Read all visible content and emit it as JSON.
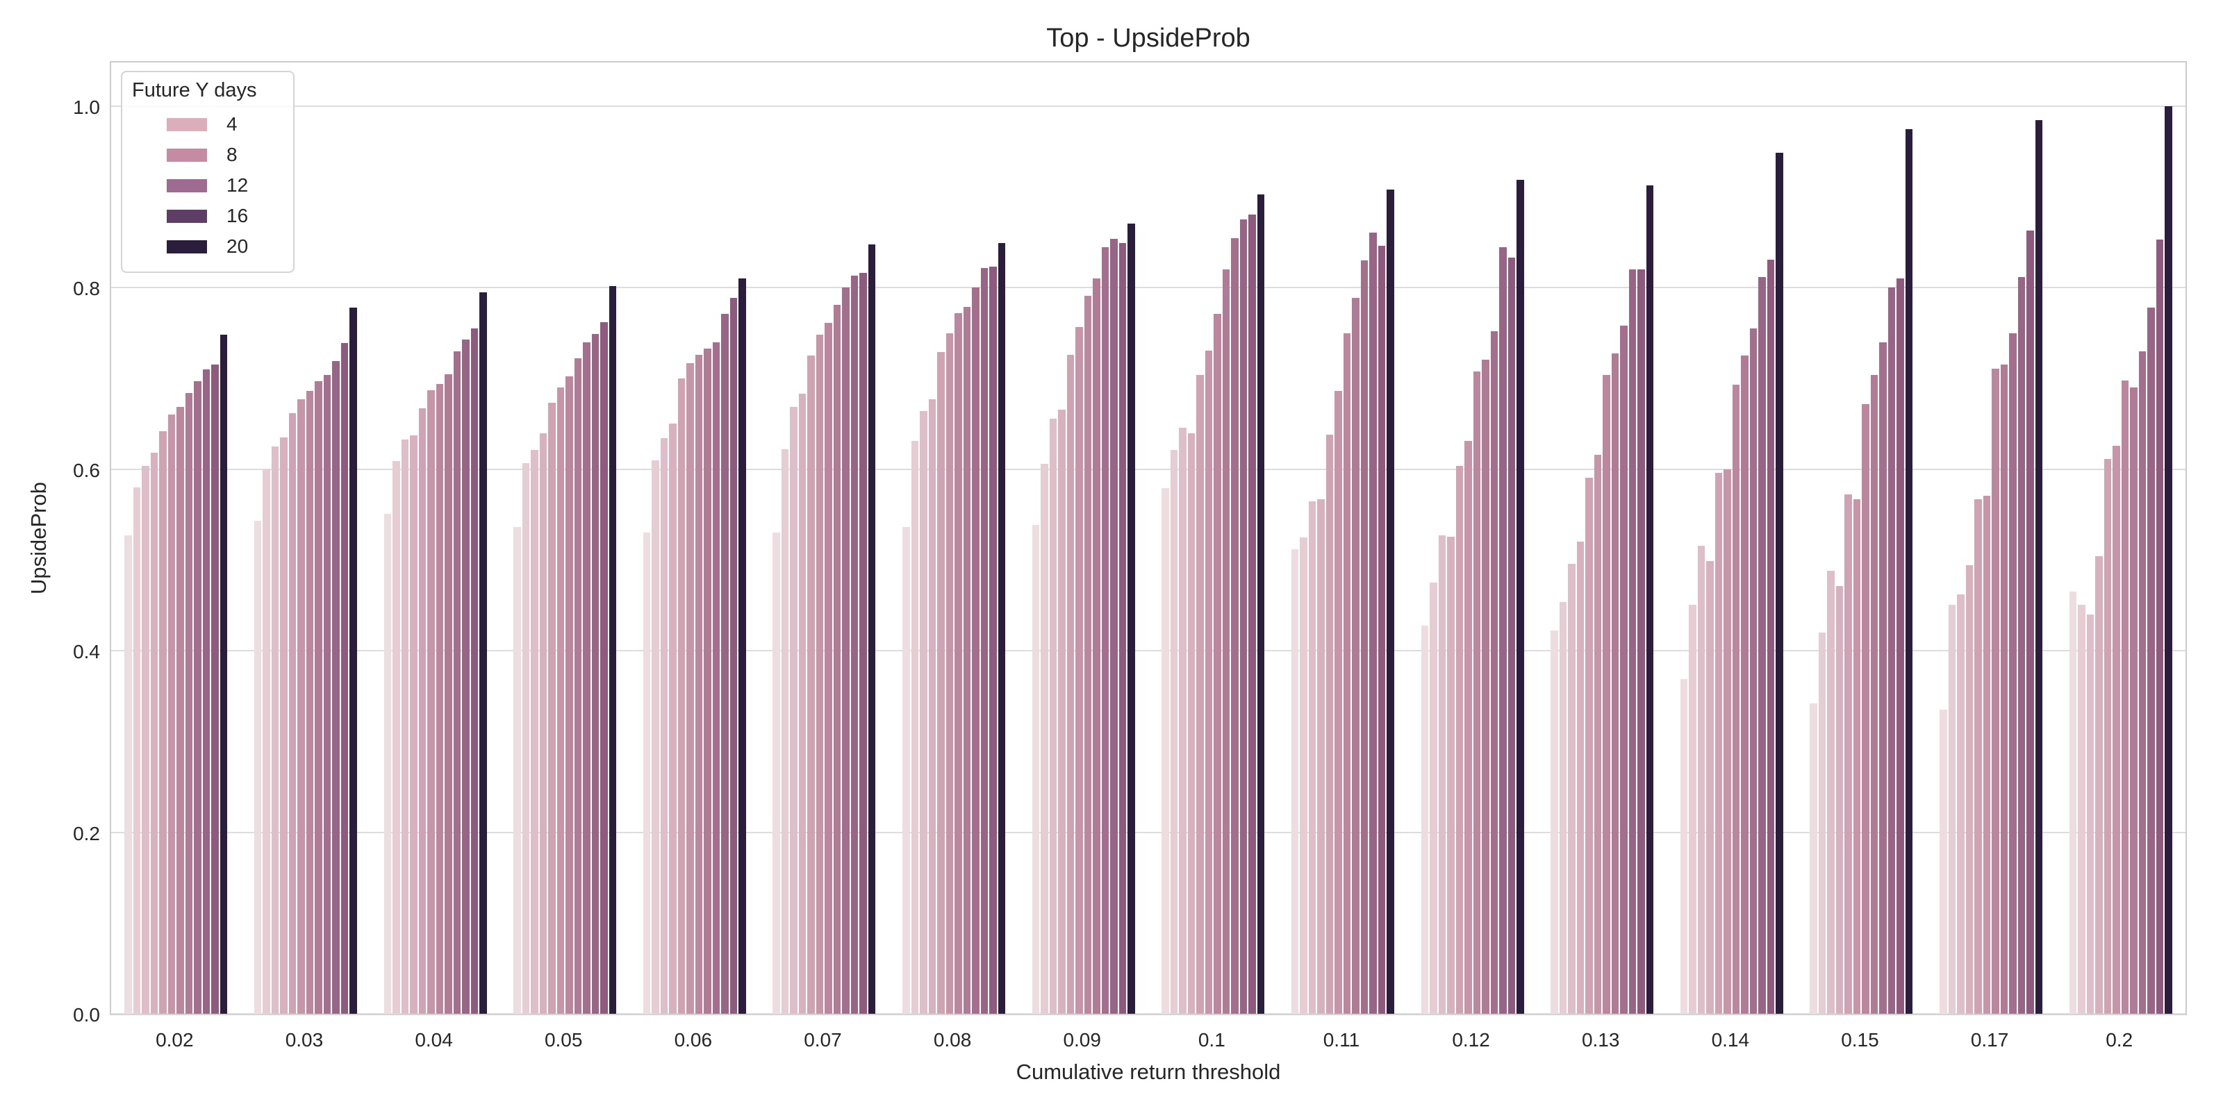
{
  "chart_data": {
    "type": "bar",
    "title": "Top - UpsideProb",
    "xlabel": "Cumulative return threshold",
    "ylabel": "UpsideProb",
    "categories": [
      "0.02",
      "0.03",
      "0.04",
      "0.05",
      "0.06",
      "0.07",
      "0.08",
      "0.09",
      "0.1",
      "0.11",
      "0.12",
      "0.13",
      "0.14",
      "0.15",
      "0.17",
      "0.2"
    ],
    "y_ticks": [
      "0.0",
      "0.2",
      "0.4",
      "0.6",
      "0.8",
      "1.0"
    ],
    "ylim": [
      0,
      1.051
    ],
    "grid": true,
    "bars_per_group": 12,
    "legend": {
      "title": "Future Y days",
      "position": "upper left",
      "entries": [
        {
          "label": "4",
          "color": "#dcaebc"
        },
        {
          "label": "8",
          "color": "#c48ba3"
        },
        {
          "label": "12",
          "color": "#a06b90"
        },
        {
          "label": "16",
          "color": "#5e3d67"
        },
        {
          "label": "20",
          "color": "#2b1e3c"
        }
      ]
    },
    "palette": [
      "#eddce0",
      "#e6cdd4",
      "#debfc9",
      "#d7b1bd",
      "#cfa3b2",
      "#c695a8",
      "#bb879e",
      "#b07b95",
      "#a46f8d",
      "#996586",
      "#8e5b7e",
      "#2b1e3c"
    ],
    "groups": [
      {
        "category": "0.02",
        "values": [
          0.527,
          0.58,
          0.604,
          0.618,
          0.642,
          0.66,
          0.669,
          0.684,
          0.697,
          0.71,
          0.715,
          0.748
        ]
      },
      {
        "category": "0.03",
        "values": [
          0.543,
          0.6,
          0.625,
          0.635,
          0.662,
          0.677,
          0.686,
          0.697,
          0.704,
          0.719,
          0.739,
          0.778
        ]
      },
      {
        "category": "0.04",
        "values": [
          0.551,
          0.609,
          0.633,
          0.637,
          0.667,
          0.687,
          0.694,
          0.705,
          0.73,
          0.743,
          0.755,
          0.795
        ]
      },
      {
        "category": "0.05",
        "values": [
          0.536,
          0.607,
          0.621,
          0.64,
          0.673,
          0.69,
          0.702,
          0.722,
          0.74,
          0.749,
          0.762,
          0.802
        ]
      },
      {
        "category": "0.06",
        "values": [
          0.53,
          0.61,
          0.634,
          0.65,
          0.7,
          0.717,
          0.726,
          0.733,
          0.74,
          0.771,
          0.789,
          0.81
        ]
      },
      {
        "category": "0.07",
        "values": [
          0.53,
          0.622,
          0.669,
          0.683,
          0.725,
          0.748,
          0.761,
          0.781,
          0.8,
          0.813,
          0.816,
          0.848
        ]
      },
      {
        "category": "0.08",
        "values": [
          0.536,
          0.631,
          0.664,
          0.677,
          0.729,
          0.75,
          0.772,
          0.779,
          0.8,
          0.822,
          0.823,
          0.849
        ]
      },
      {
        "category": "0.09",
        "values": [
          0.539,
          0.606,
          0.656,
          0.666,
          0.726,
          0.757,
          0.791,
          0.81,
          0.845,
          0.854,
          0.849,
          0.871
        ]
      },
      {
        "category": "0.1",
        "values": [
          0.579,
          0.621,
          0.646,
          0.64,
          0.704,
          0.731,
          0.771,
          0.82,
          0.855,
          0.875,
          0.881,
          0.903
        ]
      },
      {
        "category": "0.11",
        "values": [
          0.512,
          0.525,
          0.565,
          0.567,
          0.638,
          0.686,
          0.75,
          0.789,
          0.83,
          0.861,
          0.846,
          0.908
        ]
      },
      {
        "category": "0.12",
        "values": [
          0.428,
          0.475,
          0.527,
          0.526,
          0.604,
          0.631,
          0.708,
          0.721,
          0.752,
          0.845,
          0.833,
          0.919
        ]
      },
      {
        "category": "0.13",
        "values": [
          0.422,
          0.454,
          0.496,
          0.52,
          0.591,
          0.616,
          0.704,
          0.728,
          0.758,
          0.82,
          0.82,
          0.913
        ]
      },
      {
        "category": "0.14",
        "values": [
          0.369,
          0.451,
          0.516,
          0.499,
          0.596,
          0.6,
          0.693,
          0.725,
          0.755,
          0.812,
          0.831,
          0.949
        ]
      },
      {
        "category": "0.15",
        "values": [
          0.342,
          0.42,
          0.488,
          0.471,
          0.572,
          0.567,
          0.672,
          0.704,
          0.74,
          0.8,
          0.81,
          0.975
        ]
      },
      {
        "category": "0.17",
        "values": [
          0.335,
          0.451,
          0.462,
          0.494,
          0.567,
          0.571,
          0.711,
          0.715,
          0.75,
          0.812,
          0.863,
          0.985
        ]
      },
      {
        "category": "0.2",
        "values": [
          0.465,
          0.451,
          0.44,
          0.504,
          0.611,
          0.626,
          0.698,
          0.69,
          0.73,
          0.778,
          0.853,
          1.0
        ]
      }
    ]
  }
}
